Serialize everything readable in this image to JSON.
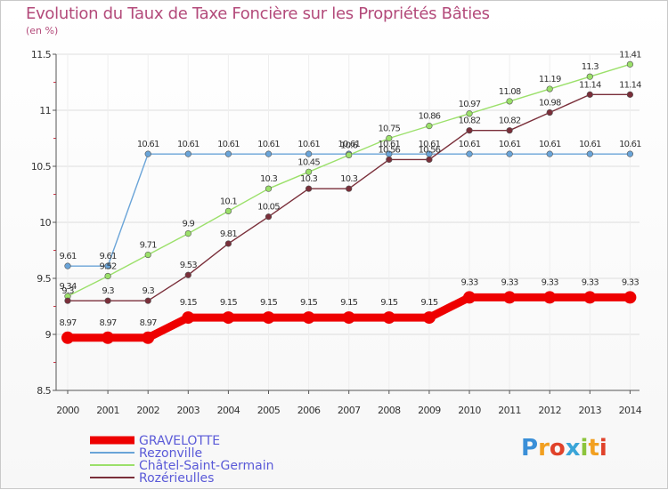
{
  "header": {
    "title": "Evolution du Taux de Taxe Foncière sur les Propriétés Bâties",
    "unit": "(en %)"
  },
  "logo": {
    "letters": [
      "P",
      "r",
      "o",
      "x",
      "i",
      "t",
      "i"
    ],
    "colors": [
      "#3a8fd8",
      "#f2a020",
      "#e0422a",
      "#3aa5d8",
      "#8cc43c",
      "#f2a020",
      "#e0422a"
    ]
  },
  "chart_data": {
    "type": "line",
    "title": "Evolution du Taux de Taxe Foncière sur les Propriétés Bâties",
    "ylabel": "(en %)",
    "xlabel": "",
    "ylim": [
      8.5,
      11.5
    ],
    "yticks": [
      "8.5",
      "9",
      "9.5",
      "10",
      "10.5",
      "11",
      "11.5"
    ],
    "categories": [
      "2000",
      "2001",
      "2002",
      "2003",
      "2004",
      "2005",
      "2006",
      "2007",
      "2008",
      "2009",
      "2010",
      "2011",
      "2012",
      "2013",
      "2014"
    ],
    "series": [
      {
        "name": "GRAVELOTTE",
        "color": "#ee0000",
        "values": [
          8.97,
          8.97,
          8.97,
          9.15,
          9.15,
          9.15,
          9.15,
          9.15,
          9.15,
          9.15,
          9.33,
          9.33,
          9.33,
          9.33,
          9.33
        ],
        "labels": [
          "8.97",
          "8.97",
          "8.97",
          "9.15",
          "9.15",
          "9.15",
          "9.15",
          "9.15",
          "9.15",
          "9.15",
          "9.33",
          "9.33",
          "9.33",
          "9.33",
          "9.33"
        ]
      },
      {
        "name": "Rezonville",
        "color": "#6aa4d8",
        "values": [
          9.61,
          9.61,
          10.61,
          10.61,
          10.61,
          10.61,
          10.61,
          10.61,
          10.61,
          10.61,
          10.61,
          10.61,
          10.61,
          10.61,
          10.61
        ],
        "labels": [
          "9.61",
          "9.61",
          "10.61",
          "10.61",
          "10.61",
          "10.61",
          "10.61",
          "10.61",
          "10.61",
          "10.61",
          "10.61",
          "10.61",
          "10.61",
          "10.61",
          "10.61"
        ]
      },
      {
        "name": "Châtel-Saint-Germain",
        "color": "#9be06a",
        "values": [
          9.34,
          9.52,
          9.71,
          9.9,
          10.1,
          10.3,
          10.45,
          10.6,
          10.75,
          10.86,
          10.97,
          11.08,
          11.19,
          11.3,
          11.41
        ],
        "labels": [
          "9.34",
          "9.52",
          "9.71",
          "9.9",
          "10.1",
          "10.3",
          "10.45",
          "10.6",
          "10.75",
          "10.86",
          "10.97",
          "11.08",
          "11.19",
          "11.3",
          "11.41"
        ]
      },
      {
        "name": "Rozérieulles",
        "color": "#7a2f3a",
        "values": [
          9.3,
          9.3,
          9.3,
          9.53,
          9.81,
          10.05,
          10.3,
          10.3,
          10.56,
          10.56,
          10.82,
          10.82,
          10.98,
          11.14,
          11.14
        ],
        "labels": [
          "9.3",
          "9.3",
          "9.3",
          "9.53",
          "9.81",
          "10.05",
          "10.3",
          "10.3",
          "10.56",
          "10.56",
          "10.82",
          "10.82",
          "10.98",
          "11.14",
          "11.14"
        ]
      }
    ],
    "legend_position": "bottom-left"
  }
}
